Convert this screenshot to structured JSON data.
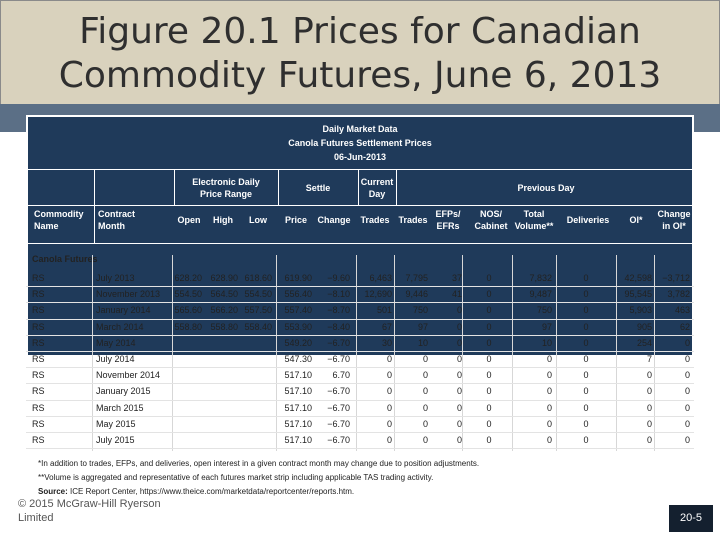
{
  "title": {
    "line1": "Figure 20.1 Prices for Canadian",
    "line2": "Commodity Futures, June 6, 2013"
  },
  "table": {
    "caption1": "Daily Market Data",
    "caption2": "Canola Futures Settlement Prices",
    "caption3": "06-Jun-2013",
    "group_headers": {
      "electronic": "Electronic Daily\nPrice Range",
      "settle": "Settle",
      "current_day": "Current\nDay",
      "previous_day": "Previous Day"
    },
    "columns": [
      "Commodity\nName",
      "Contract\nMonth",
      "Open",
      "High",
      "Low",
      "Price",
      "Change",
      "Trades",
      "Trades",
      "EFPs/\nEFRs",
      "NOS/\nCabinet",
      "Total\nVolume**",
      "Deliveries",
      "OI*",
      "Change\nin OI*"
    ],
    "section": "Canola Futures",
    "rows": [
      [
        "RS",
        "July 2013",
        "628.20",
        "628.90",
        "618.60",
        "619.90",
        "−9.60",
        "6,463",
        "7,795",
        "37",
        "0",
        "7,832",
        "0",
        "42,598",
        "−3,712"
      ],
      [
        "RS",
        "November 2013",
        "554.50",
        "564.50",
        "554.50",
        "556.40",
        "−8.10",
        "12,690",
        "9,446",
        "41",
        "0",
        "9,487",
        "0",
        "95,545",
        "3,782"
      ],
      [
        "RS",
        "January 2014",
        "565.60",
        "566.20",
        "557.50",
        "557.40",
        "−8.70",
        "501",
        "750",
        "0",
        "0",
        "750",
        "0",
        "5,903",
        "463"
      ],
      [
        "RS",
        "March 2014",
        "558.80",
        "558.80",
        "558.40",
        "553.90",
        "−8.40",
        "67",
        "97",
        "0",
        "0",
        "97",
        "0",
        "905",
        "62"
      ],
      [
        "RS",
        "May 2014",
        "",
        "",
        "",
        "549.20",
        "−6.70",
        "30",
        "10",
        "0",
        "0",
        "10",
        "0",
        "254",
        "0"
      ],
      [
        "RS",
        "July 2014",
        "",
        "",
        "",
        "547.30",
        "−6.70",
        "0",
        "0",
        "0",
        "0",
        "0",
        "0",
        "7",
        "0"
      ],
      [
        "RS",
        "November 2014",
        "",
        "",
        "",
        "517.10",
        "6.70",
        "0",
        "0",
        "0",
        "0",
        "0",
        "0",
        "0",
        "0"
      ],
      [
        "RS",
        "January 2015",
        "",
        "",
        "",
        "517.10",
        "−6.70",
        "0",
        "0",
        "0",
        "0",
        "0",
        "0",
        "0",
        "0"
      ],
      [
        "RS",
        "March 2015",
        "",
        "",
        "",
        "517.10",
        "−6.70",
        "0",
        "0",
        "0",
        "0",
        "0",
        "0",
        "0",
        "0"
      ],
      [
        "RS",
        "May 2015",
        "",
        "",
        "",
        "517.10",
        "−6.70",
        "0",
        "0",
        "0",
        "0",
        "0",
        "0",
        "0",
        "0"
      ],
      [
        "RS",
        "July 2015",
        "",
        "",
        "",
        "517.10",
        "−6.70",
        "0",
        "0",
        "0",
        "0",
        "0",
        "0",
        "0",
        "0"
      ]
    ]
  },
  "footnotes": {
    "note1": "*In addition to trades, EFPs, and deliveries, open interest in a given contract month may change due to position adjustments.",
    "note2": "**Volume is aggregated and representative of each futures market strip including applicable TAS trading activity.",
    "source_label": "Source:",
    "source_text": " ICE Report Center, https://www.theice.com/marketdata/reportcenter/reports.htm."
  },
  "copyright": "© 2015 McGraw-Hill Ryerson\nLimited",
  "page_number": "20-5"
}
